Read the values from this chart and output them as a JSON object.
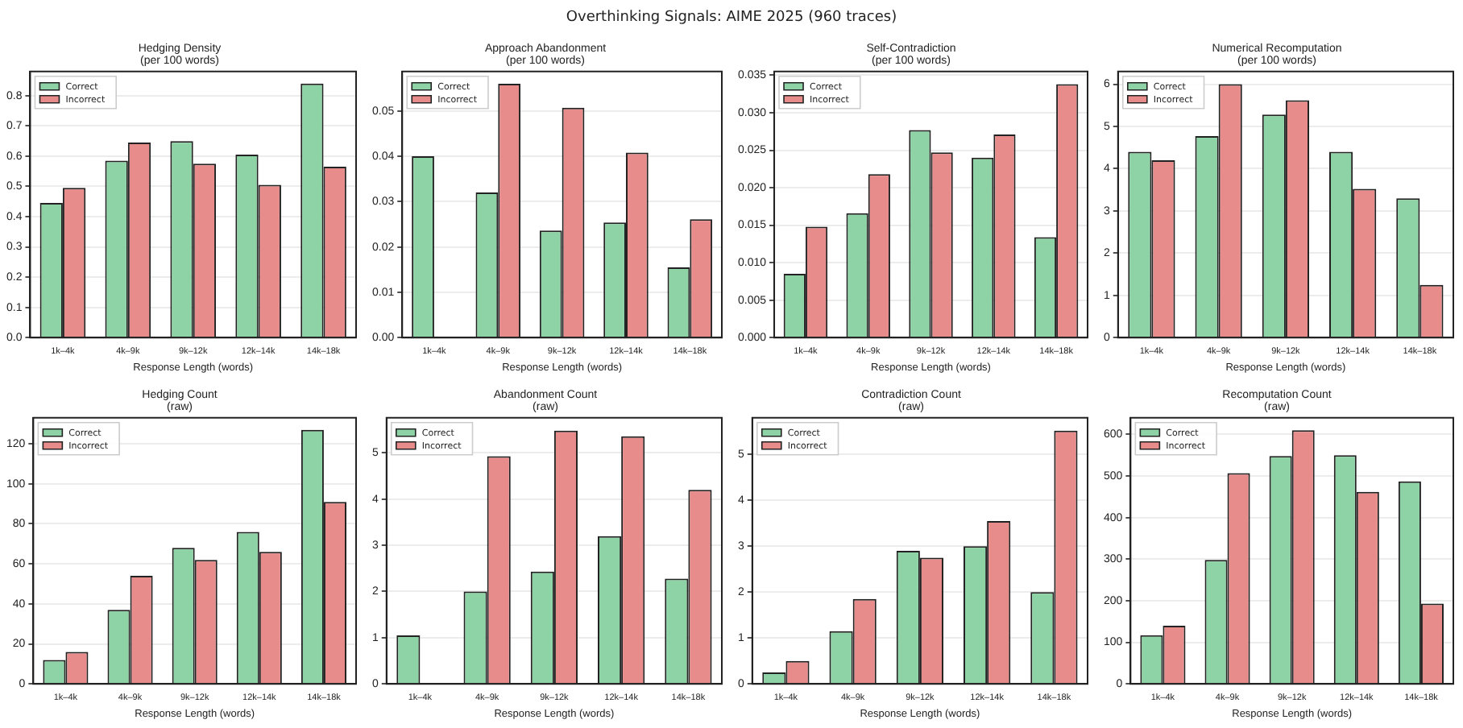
{
  "chart_data": [
    {
      "type": "bar",
      "title": "Hedging Density\n(per 100 words)",
      "annotations": [
        "Overthinking Signals: AIME 2025 (960 traces)"
      ],
      "xlabel": "Response Length (words)",
      "categories": [
        "1k–4k",
        "4k–9k",
        "9k–12k",
        "12k–14k",
        "14k–18k"
      ],
      "series": [
        {
          "name": "Correct",
          "color": "#8dd3a5",
          "values": [
            0.445,
            0.585,
            0.65,
            0.605,
            0.84
          ]
        },
        {
          "name": "Incorrect",
          "color": "#e88b8b",
          "values": [
            0.495,
            0.645,
            0.575,
            0.505,
            0.565
          ]
        }
      ],
      "ylim": [
        0,
        0.88
      ],
      "yticks": [
        {
          "value": 0,
          "label": "0.0"
        },
        {
          "value": 0.1,
          "label": "0.1"
        },
        {
          "value": 0.2,
          "label": "0.2"
        },
        {
          "value": 0.3,
          "label": "0.3"
        },
        {
          "value": 0.4,
          "label": "0.4"
        },
        {
          "value": 0.5,
          "label": "0.5"
        },
        {
          "value": 0.6,
          "label": "0.6"
        },
        {
          "value": 0.7,
          "label": "0.7"
        },
        {
          "value": 0.8,
          "label": "0.8"
        }
      ],
      "grid": "y",
      "legend": "top left"
    },
    {
      "type": "bar",
      "title": "Approach Abandonment\n(per 100 words)",
      "xlabel": "Response Length (words)",
      "categories": [
        "1k–4k",
        "4k–9k",
        "9k–12k",
        "12k–14k",
        "14k–18k"
      ],
      "series": [
        {
          "name": "Correct",
          "color": "#8dd3a5",
          "values": [
            0.04,
            0.032,
            0.0236,
            0.0254,
            0.0155
          ]
        },
        {
          "name": "Incorrect",
          "color": "#e88b8b",
          "values": [
            0,
            0.056,
            0.0507,
            0.0408,
            0.0261
          ]
        }
      ],
      "ylim": [
        0,
        0.0587
      ],
      "yticks": [
        {
          "value": 0,
          "label": "0.00"
        },
        {
          "value": 0.01,
          "label": "0.01"
        },
        {
          "value": 0.02,
          "label": "0.02"
        },
        {
          "value": 0.03,
          "label": "0.03"
        },
        {
          "value": 0.04,
          "label": "0.04"
        },
        {
          "value": 0.05,
          "label": "0.05"
        }
      ],
      "grid": "y",
      "legend": "top left"
    },
    {
      "type": "bar",
      "title": "Self-Contradiction\n(per 100 words)",
      "xlabel": "Response Length (words)",
      "categories": [
        "1k–4k",
        "4k–9k",
        "9k–12k",
        "12k–14k",
        "14k–18k"
      ],
      "series": [
        {
          "name": "Correct",
          "color": "#8dd3a5",
          "values": [
            0.0085,
            0.0166,
            0.0277,
            0.024,
            0.0134
          ]
        },
        {
          "name": "Incorrect",
          "color": "#e88b8b",
          "values": [
            0.0148,
            0.0218,
            0.0247,
            0.0271,
            0.0338
          ]
        }
      ],
      "ylim": [
        0,
        0.0355
      ],
      "yticks": [
        {
          "value": 0,
          "label": "0.000"
        },
        {
          "value": 0.005,
          "label": "0.005"
        },
        {
          "value": 0.01,
          "label": "0.010"
        },
        {
          "value": 0.015,
          "label": "0.015"
        },
        {
          "value": 0.02,
          "label": "0.020"
        },
        {
          "value": 0.025,
          "label": "0.025"
        },
        {
          "value": 0.03,
          "label": "0.030"
        },
        {
          "value": 0.035,
          "label": "0.035"
        }
      ],
      "grid": "y",
      "legend": "top left"
    },
    {
      "type": "bar",
      "title": "Numerical Recomputation\n(per 100 words)",
      "xlabel": "Response Length (words)",
      "categories": [
        "1k–4k",
        "4k–9k",
        "9k–12k",
        "12k–14k",
        "14k–18k"
      ],
      "series": [
        {
          "name": "Correct",
          "color": "#8dd3a5",
          "values": [
            4.4,
            4.77,
            5.28,
            4.4,
            3.3
          ]
        },
        {
          "name": "Incorrect",
          "color": "#e88b8b",
          "values": [
            4.2,
            6.0,
            5.62,
            3.52,
            1.25
          ]
        }
      ],
      "ylim": [
        0,
        6.3
      ],
      "yticks": [
        0,
        1,
        2,
        3,
        4,
        5,
        6
      ],
      "grid": "y",
      "legend": "top left"
    },
    {
      "type": "bar",
      "title": "Hedging Count\n(raw)",
      "xlabel": "Response Length (words)",
      "categories": [
        "1k–4k",
        "4k–9k",
        "9k–12k",
        "12k–14k",
        "14k–18k"
      ],
      "series": [
        {
          "name": "Correct",
          "color": "#8dd3a5",
          "values": [
            12,
            37,
            68,
            76,
            127
          ]
        },
        {
          "name": "Incorrect",
          "color": "#e88b8b",
          "values": [
            16,
            54,
            62,
            66,
            91
          ]
        }
      ],
      "ylim": [
        0,
        133
      ],
      "yticks": [
        0,
        20,
        40,
        60,
        80,
        100,
        120
      ],
      "grid": "y",
      "legend": "top left"
    },
    {
      "type": "bar",
      "title": "Abandonment Count\n(raw)",
      "xlabel": "Response Length (words)",
      "categories": [
        "1k–4k",
        "4k–9k",
        "9k–12k",
        "12k–14k",
        "14k–18k"
      ],
      "series": [
        {
          "name": "Correct",
          "color": "#8dd3a5",
          "values": [
            1.05,
            2.0,
            2.43,
            3.2,
            2.28
          ]
        },
        {
          "name": "Incorrect",
          "color": "#e88b8b",
          "values": [
            0,
            4.93,
            5.48,
            5.36,
            4.2
          ]
        }
      ],
      "ylim": [
        0,
        5.76
      ],
      "yticks": [
        0,
        1,
        2,
        3,
        4,
        5
      ],
      "grid": "y",
      "legend": "top left"
    },
    {
      "type": "bar",
      "title": "Contradiction Count\n(raw)",
      "xlabel": "Response Length (words)",
      "categories": [
        "1k–4k",
        "4k–9k",
        "9k–12k",
        "12k–14k",
        "14k–18k"
      ],
      "series": [
        {
          "name": "Correct",
          "color": "#8dd3a5",
          "values": [
            0.25,
            1.15,
            2.9,
            3.0,
            2.0
          ]
        },
        {
          "name": "Incorrect",
          "color": "#e88b8b",
          "values": [
            0.5,
            1.85,
            2.75,
            3.55,
            5.52
          ]
        }
      ],
      "ylim": [
        0,
        5.8
      ],
      "yticks": [
        0,
        1,
        2,
        3,
        4,
        5
      ],
      "grid": "y",
      "legend": "top left"
    },
    {
      "type": "bar",
      "title": "Recomputation Count\n(raw)",
      "xlabel": "Response Length (words)",
      "categories": [
        "1k–4k",
        "4k–9k",
        "9k–12k",
        "12k–14k",
        "14k–18k"
      ],
      "series": [
        {
          "name": "Correct",
          "color": "#8dd3a5",
          "values": [
            117,
            298,
            548,
            550,
            487
          ]
        },
        {
          "name": "Incorrect",
          "color": "#e88b8b",
          "values": [
            140,
            507,
            610,
            462,
            193
          ]
        }
      ],
      "ylim": [
        0,
        640
      ],
      "yticks": [
        0,
        100,
        200,
        300,
        400,
        500,
        600
      ],
      "grid": "y",
      "legend": "top left"
    }
  ]
}
